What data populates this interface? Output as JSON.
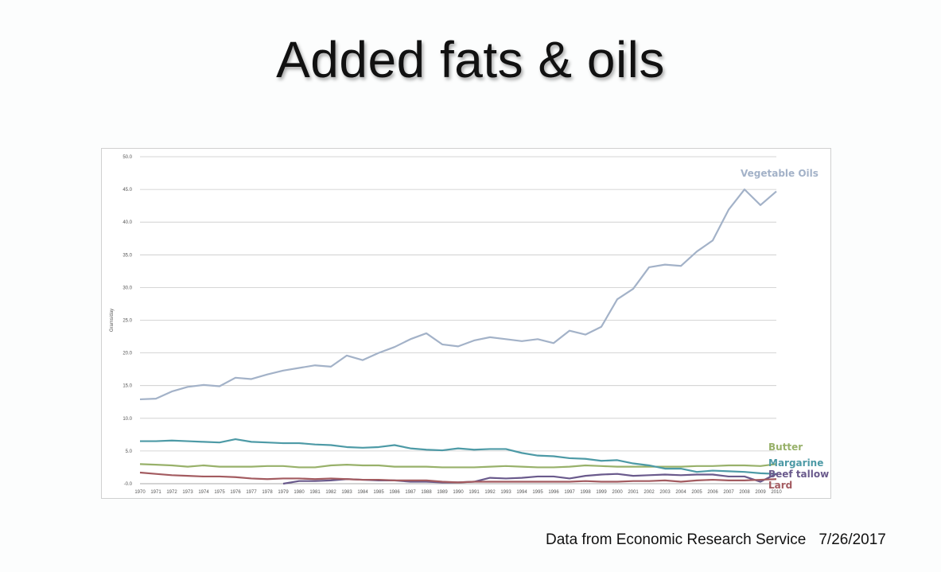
{
  "slide": {
    "title": "Added fats & oils",
    "footer_source": "Data from Economic Research Service",
    "footer_date": "7/26/2017"
  },
  "chart_data": {
    "type": "line",
    "ylabel": "Grams/day",
    "ylim": [
      0,
      50
    ],
    "y_ticks": [
      0,
      5,
      10,
      15,
      20,
      25,
      30,
      35,
      40,
      45,
      50
    ],
    "y_tick_labels": [
      "-0.0",
      "5.0",
      "10.0",
      "15.0",
      "20.0",
      "25.0",
      "30.0",
      "35.0",
      "40.0",
      "45.0",
      "50.0"
    ],
    "grid": true,
    "x": [
      1970,
      1971,
      1972,
      1973,
      1974,
      1975,
      1976,
      1977,
      1978,
      1979,
      1980,
      1981,
      1982,
      1983,
      1984,
      1985,
      1986,
      1987,
      1988,
      1989,
      1990,
      1991,
      1992,
      1993,
      1994,
      1995,
      1996,
      1997,
      1998,
      1999,
      2000,
      2001,
      2002,
      2003,
      2004,
      2005,
      2006,
      2007,
      2008,
      2009,
      2010
    ],
    "series": [
      {
        "name": "Vegetable Oils",
        "color": "#a3b2c8",
        "values": [
          12.9,
          13.0,
          14.1,
          14.8,
          15.1,
          14.9,
          16.2,
          16.0,
          16.7,
          17.3,
          17.7,
          18.1,
          17.9,
          19.6,
          18.9,
          20.0,
          20.9,
          22.1,
          23.0,
          21.3,
          21.0,
          21.9,
          22.4,
          22.1,
          21.8,
          22.1,
          21.5,
          23.4,
          22.8,
          24.0,
          28.2,
          29.8,
          33.1,
          33.5,
          33.3,
          35.5,
          37.2,
          41.9,
          45.0,
          42.6,
          44.7
        ]
      },
      {
        "name": "Butter",
        "color": "#98b16a",
        "values": [
          3.0,
          2.9,
          2.8,
          2.6,
          2.8,
          2.6,
          2.6,
          2.6,
          2.7,
          2.7,
          2.5,
          2.5,
          2.8,
          2.9,
          2.8,
          2.8,
          2.6,
          2.6,
          2.6,
          2.5,
          2.5,
          2.5,
          2.6,
          2.7,
          2.6,
          2.5,
          2.5,
          2.6,
          2.8,
          2.7,
          2.6,
          2.6,
          2.6,
          2.6,
          2.6,
          2.7,
          2.7,
          2.8,
          2.8,
          2.7,
          3.0
        ]
      },
      {
        "name": "Margarine",
        "color": "#4d9aa6",
        "values": [
          6.5,
          6.5,
          6.6,
          6.5,
          6.4,
          6.3,
          6.8,
          6.4,
          6.3,
          6.2,
          6.2,
          6.0,
          5.9,
          5.6,
          5.5,
          5.6,
          5.9,
          5.4,
          5.2,
          5.1,
          5.4,
          5.2,
          5.3,
          5.3,
          4.7,
          4.3,
          4.2,
          3.9,
          3.8,
          3.5,
          3.6,
          3.1,
          2.8,
          2.3,
          2.3,
          1.8,
          2.0,
          1.9,
          1.8,
          1.6,
          1.5
        ]
      },
      {
        "name": "Beef tallow",
        "color": "#6a5a8c",
        "values": [
          null,
          null,
          null,
          null,
          null,
          null,
          null,
          null,
          null,
          0.0,
          0.4,
          0.4,
          0.5,
          0.7,
          0.6,
          0.5,
          0.5,
          0.3,
          0.3,
          0.2,
          0.2,
          0.3,
          0.9,
          0.8,
          0.9,
          1.1,
          1.1,
          0.8,
          1.2,
          1.4,
          1.5,
          1.2,
          1.3,
          1.4,
          1.3,
          1.4,
          1.4,
          1.1,
          1.1,
          0.3,
          1.5
        ]
      },
      {
        "name": "Lard",
        "color": "#a35b60",
        "values": [
          1.7,
          1.5,
          1.3,
          1.2,
          1.1,
          1.1,
          1.0,
          0.8,
          0.7,
          0.8,
          0.8,
          0.7,
          0.8,
          0.7,
          0.6,
          0.6,
          0.5,
          0.5,
          0.5,
          0.3,
          0.2,
          0.3,
          0.3,
          0.3,
          0.3,
          0.3,
          0.3,
          0.3,
          0.4,
          0.3,
          0.3,
          0.4,
          0.4,
          0.5,
          0.3,
          0.5,
          0.6,
          0.5,
          0.5,
          0.6,
          0.7
        ]
      }
    ]
  }
}
